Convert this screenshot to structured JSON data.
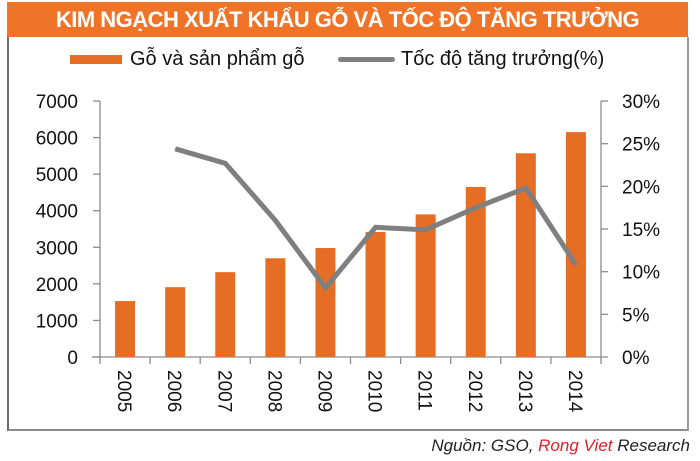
{
  "title": "KIM NGẠCH XUẤT KHẨU GỖ VÀ TỐC ĐỘ TĂNG TRƯỞNG",
  "legend": {
    "bar_label": "Gỗ và sản phẩm gỗ",
    "line_label": "Tốc độ tăng trưởng(%)"
  },
  "source": {
    "prefix": "Nguồn: GSO, ",
    "highlight": "Rong Viet",
    "suffix": " Research"
  },
  "colors": {
    "banner": "#F07428",
    "bar": "#E66E24",
    "line": "#7F7F7F",
    "source_highlight": "#E0202A"
  },
  "chart_data": {
    "type": "bar+line",
    "title": "KIM NGẠCH XUẤT KHẨU GỖ VÀ TỐC ĐỘ TĂNG TRƯỞNG",
    "categories": [
      "2005",
      "2006",
      "2007",
      "2008",
      "2009",
      "2010",
      "2011",
      "2012",
      "2013",
      "2014"
    ],
    "series": [
      {
        "name": "Gỗ và sản phẩm gỗ",
        "type": "bar",
        "axis": "left",
        "values": [
          1530,
          1910,
          2320,
          2700,
          2980,
          3420,
          3900,
          4650,
          5570,
          6150
        ]
      },
      {
        "name": "Tốc độ tăng trưởng(%)",
        "type": "line",
        "axis": "right",
        "values": [
          null,
          24.4,
          22.7,
          16.0,
          8.1,
          15.2,
          14.9,
          17.5,
          19.8,
          10.8
        ]
      }
    ],
    "left_axis": {
      "ticks": [
        "0",
        "1000",
        "2000",
        "3000",
        "4000",
        "5000",
        "6000",
        "7000"
      ],
      "ylim": [
        0,
        7000
      ]
    },
    "right_axis": {
      "ticks": [
        "0%",
        "5%",
        "10%",
        "15%",
        "20%",
        "25%",
        "30%"
      ],
      "ylim": [
        0,
        30
      ]
    },
    "xlabel": "",
    "ylabel": "",
    "grid": false,
    "legend_position": "top",
    "x_tick_rotation": 90
  }
}
